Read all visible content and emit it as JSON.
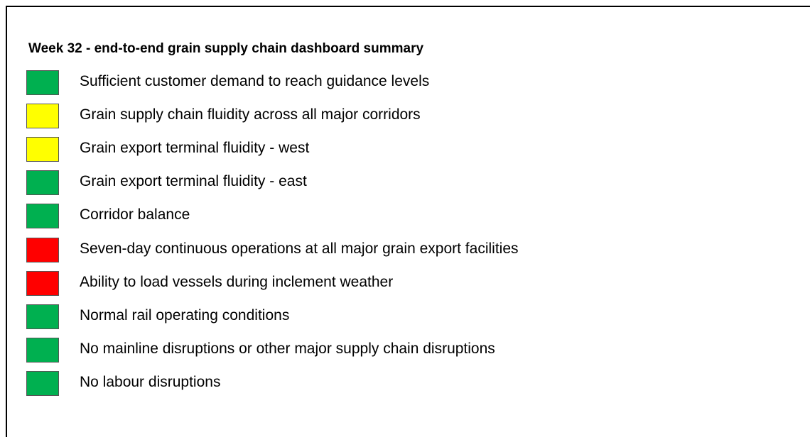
{
  "title": "Week 32 - end-to-end grain supply chain dashboard summary",
  "items": [
    {
      "label": "Sufficient customer demand to reach guidance levels",
      "color": "#00b050"
    },
    {
      "label": "Grain supply chain fluidity across all major corridors",
      "color": "#ffff00"
    },
    {
      "label": "Grain export terminal fluidity - west",
      "color": "#ffff00"
    },
    {
      "label": "Grain export terminal fluidity - east",
      "color": "#00b050"
    },
    {
      "label": "Corridor balance",
      "color": "#00b050"
    },
    {
      "label": "Seven-day continuous operations at all major grain export facilities",
      "color": "#ff0000"
    },
    {
      "label": "Ability to load vessels during inclement weather",
      "color": "#ff0000"
    },
    {
      "label": "Normal rail operating conditions",
      "color": "#00b050"
    },
    {
      "label": "No mainline disruptions or other major supply chain disruptions",
      "color": "#00b050"
    },
    {
      "label": "No labour disruptions",
      "color": "#00b050"
    }
  ]
}
